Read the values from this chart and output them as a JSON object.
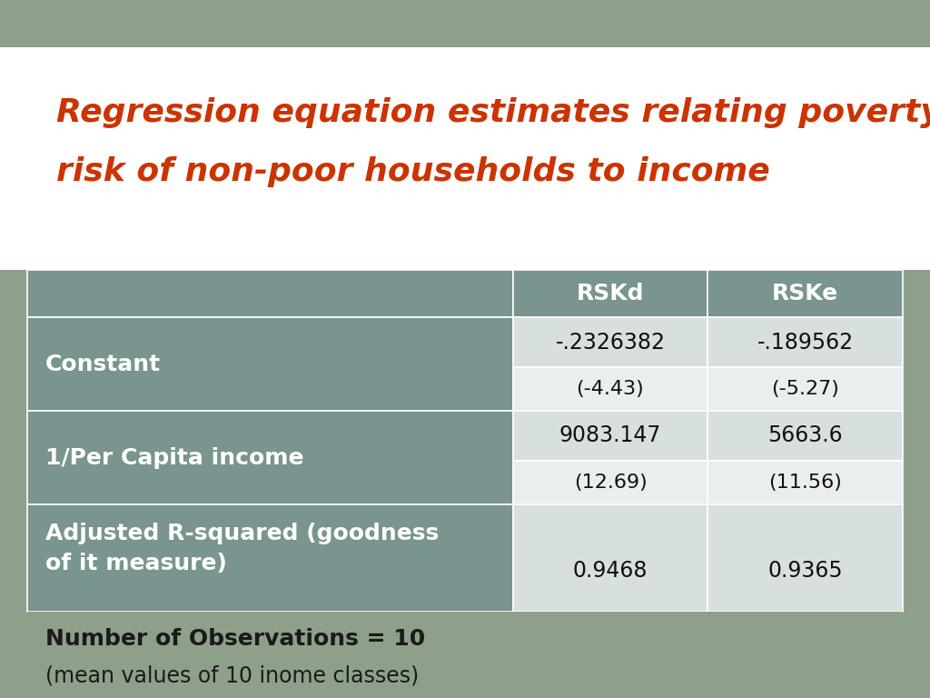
{
  "title_line1": "Regression equation estimates relating poverty",
  "title_line2": "risk of non-poor households to income",
  "title_color": "#cc3300",
  "slide_bg": "#8fa08a",
  "white_bg": "#ffffff",
  "header_bg": "#7a9490",
  "header_text_color": "#ffffff",
  "label_col_bg": "#7a9490",
  "label_text_color": "#ffffff",
  "cell_bg_dark": "#d8e0df",
  "cell_bg_light": "#eaeeee",
  "footer_bg": "#8fa08a",
  "footer_text_color": "#1a1a1a",
  "border_color": "#ffffff",
  "col_headers": [
    "RSKd",
    "RSKe"
  ],
  "rows": [
    {
      "label": "Constant",
      "values": [
        "-.2326382",
        "-.189562"
      ],
      "sub_values": [
        "(-4.43)",
        "(-5.27)"
      ]
    },
    {
      "label": "1/Per Capita income",
      "values": [
        "9083.147",
        "5663.6"
      ],
      "sub_values": [
        "(12.69)",
        "(11.56)"
      ]
    },
    {
      "label": "Adjusted R-squared (goodness\nof it measure)",
      "values": [
        "0.9468",
        "0.9365"
      ],
      "sub_values": [
        null,
        null
      ]
    }
  ],
  "footer_line1": "Number of Observations = 10",
  "footer_line2": "(mean values of 10 inome classes)"
}
